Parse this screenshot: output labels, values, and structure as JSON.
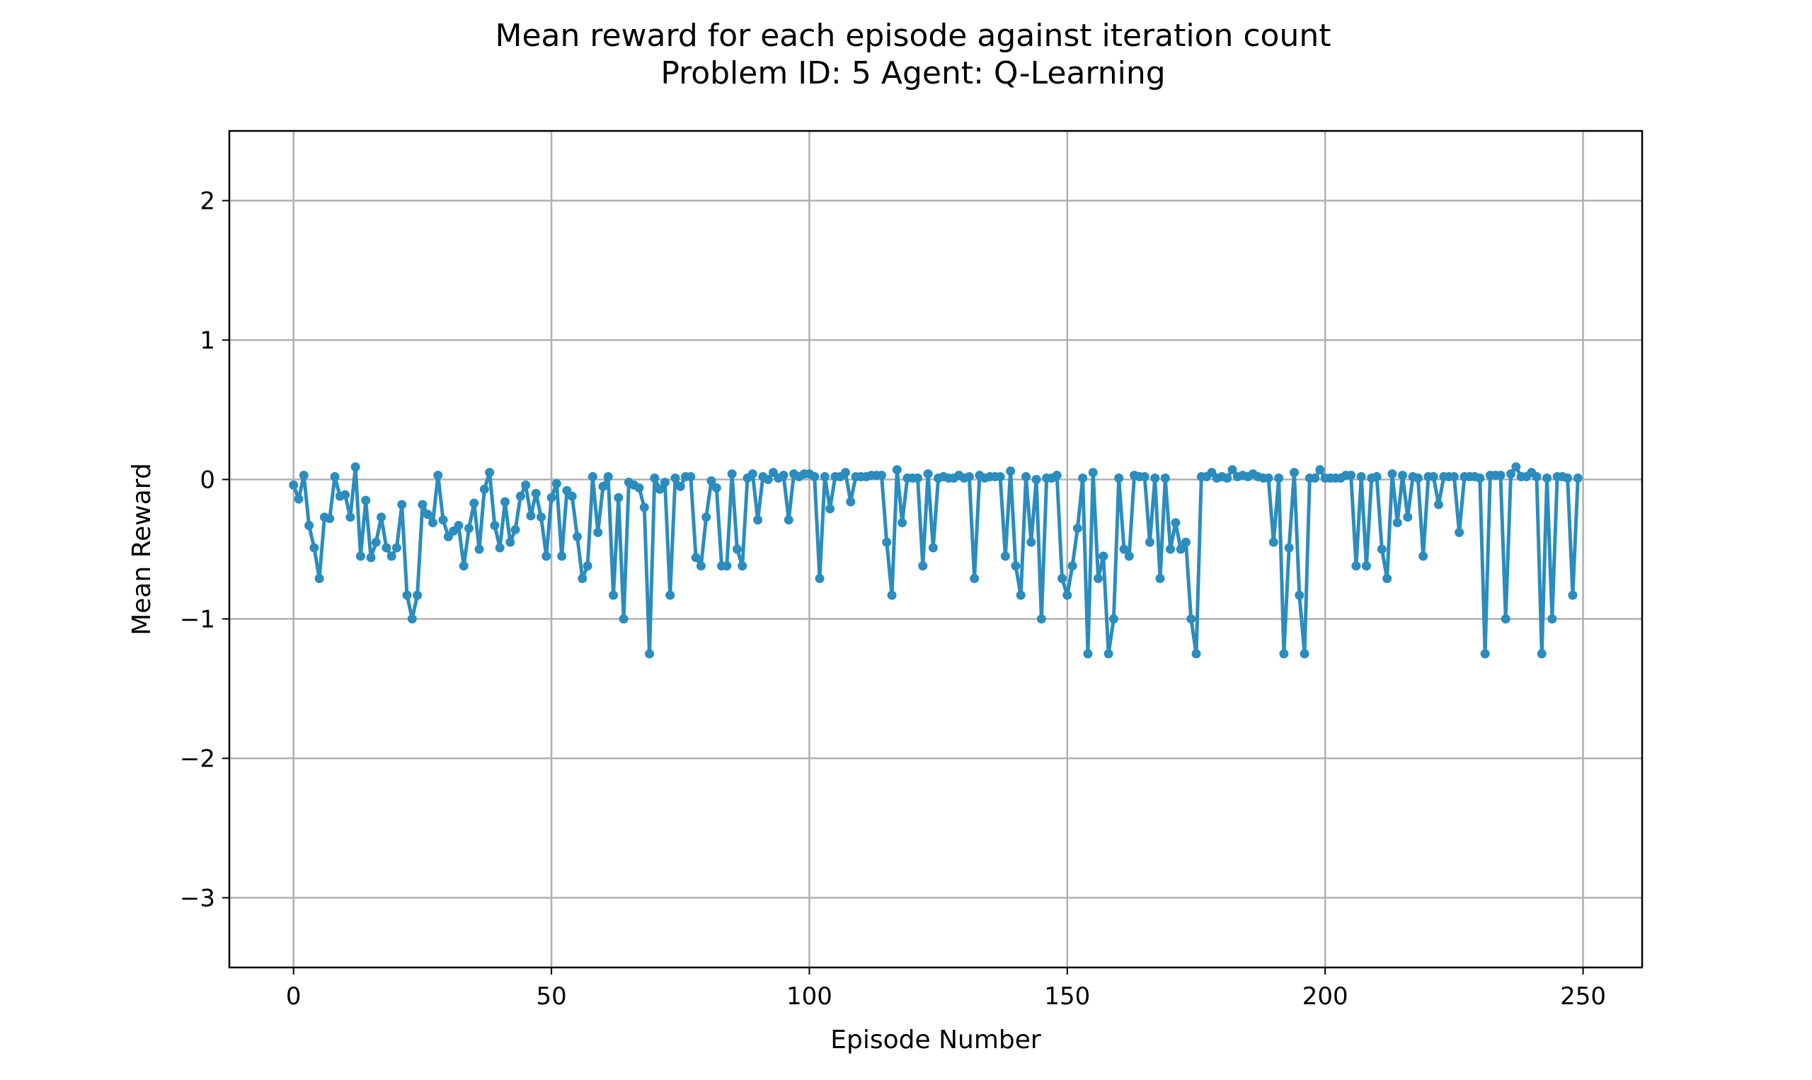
{
  "chart_data": {
    "type": "line",
    "title": "Mean reward for each episode against iteration count",
    "subtitle": "Problem ID: 5 Agent: Q-Learning",
    "xlabel": "Episode Number",
    "ylabel": "Mean Reward",
    "xlim": [
      -12.45,
      261.45
    ],
    "ylim": [
      -3.5,
      2.5
    ],
    "xticks": [
      0,
      50,
      100,
      150,
      200,
      250
    ],
    "xtick_labels": [
      "0",
      "50",
      "100",
      "150",
      "200",
      "250"
    ],
    "yticks": [
      -3,
      -2,
      -1,
      0,
      1,
      2
    ],
    "ytick_labels": [
      "−3",
      "−2",
      "−1",
      "0",
      "1",
      "2"
    ],
    "grid": true,
    "legend": false,
    "series": [
      {
        "color": "#2b8cbe",
        "marker": "circle",
        "x_start": 0,
        "x_step": 1,
        "values": [
          -0.04,
          -0.14,
          0.03,
          -0.33,
          -0.49,
          -0.71,
          -0.27,
          -0.28,
          0.02,
          -0.12,
          -0.11,
          -0.27,
          0.09,
          -0.55,
          -0.15,
          -0.56,
          -0.45,
          -0.27,
          -0.49,
          -0.55,
          -0.49,
          -0.18,
          -0.83,
          -1.0,
          -0.83,
          -0.18,
          -0.25,
          -0.31,
          0.03,
          -0.29,
          -0.41,
          -0.37,
          -0.33,
          -0.62,
          -0.35,
          -0.17,
          -0.5,
          -0.07,
          0.05,
          -0.33,
          -0.49,
          -0.16,
          -0.45,
          -0.36,
          -0.12,
          -0.04,
          -0.26,
          -0.1,
          -0.27,
          -0.55,
          -0.13,
          -0.03,
          -0.55,
          -0.08,
          -0.12,
          -0.41,
          -0.71,
          -0.62,
          0.02,
          -0.38,
          -0.05,
          0.02,
          -0.83,
          -0.13,
          -1.0,
          -0.02,
          -0.04,
          -0.06,
          -0.2,
          -1.25,
          0.01,
          -0.07,
          -0.02,
          -0.83,
          0.01,
          -0.05,
          0.02,
          0.02,
          -0.56,
          -0.62,
          -0.27,
          -0.01,
          -0.06,
          -0.62,
          -0.62,
          0.04,
          -0.5,
          -0.62,
          0.01,
          0.04,
          -0.29,
          0.02,
          0.0,
          0.05,
          0.01,
          0.03,
          -0.29,
          0.04,
          0.02,
          0.04,
          0.04,
          0.02,
          -0.71,
          0.02,
          -0.21,
          0.02,
          0.02,
          0.05,
          -0.16,
          0.02,
          0.02,
          0.02,
          0.03,
          0.03,
          0.03,
          -0.45,
          -0.83,
          0.07,
          -0.31,
          0.01,
          0.01,
          0.01,
          -0.62,
          0.04,
          -0.49,
          0.01,
          0.02,
          0.01,
          0.01,
          0.03,
          0.01,
          0.02,
          -0.71,
          0.03,
          0.01,
          0.02,
          0.02,
          0.02,
          -0.55,
          0.06,
          -0.62,
          -0.83,
          0.02,
          -0.45,
          0.0,
          -1.0,
          0.01,
          0.01,
          0.03,
          -0.71,
          -0.83,
          -0.62,
          -0.35,
          0.01,
          -1.25,
          0.05,
          -0.71,
          -0.55,
          -1.25,
          -1.0,
          0.01,
          -0.5,
          -0.55,
          0.03,
          0.02,
          0.02,
          -0.45,
          0.01,
          -0.71,
          0.01,
          -0.5,
          -0.31,
          -0.5,
          -0.45,
          -1.0,
          -1.25,
          0.02,
          0.02,
          0.05,
          0.01,
          0.02,
          0.01,
          0.07,
          0.02,
          0.03,
          0.02,
          0.04,
          0.02,
          0.01,
          0.01,
          -0.45,
          0.01,
          -1.25,
          -0.49,
          0.05,
          -0.83,
          -1.25,
          0.01,
          0.01,
          0.07,
          0.01,
          0.01,
          0.01,
          0.01,
          0.03,
          0.03,
          -0.62,
          0.02,
          -0.62,
          0.01,
          0.02,
          -0.5,
          -0.71,
          0.04,
          -0.31,
          0.03,
          -0.27,
          0.02,
          0.01,
          -0.55,
          0.02,
          0.02,
          -0.18,
          0.02,
          0.02,
          0.02,
          -0.38,
          0.02,
          0.02,
          0.02,
          0.01,
          -1.25,
          0.03,
          0.03,
          0.03,
          -1.0,
          0.04,
          0.09,
          0.02,
          0.02,
          0.05,
          0.02,
          -1.25,
          0.01,
          -1.0,
          0.02,
          0.02,
          0.01,
          -0.83,
          0.01
        ]
      }
    ]
  }
}
